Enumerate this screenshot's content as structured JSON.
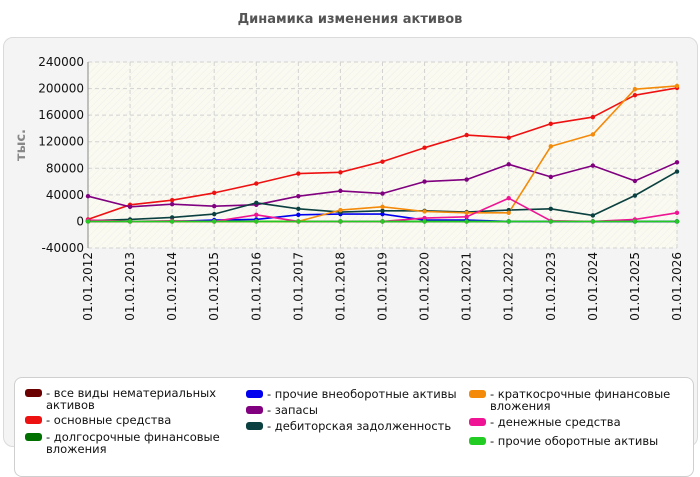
{
  "chart_data": {
    "type": "line",
    "title": "Динамика изменения активов",
    "ylabel": "тыс.",
    "xlabel": "",
    "ylim": [
      -40000,
      240000
    ],
    "yticks": [
      -40000,
      0,
      40000,
      80000,
      120000,
      160000,
      200000,
      240000
    ],
    "grid": true,
    "legend_position": "bottom",
    "categories": [
      "01.01.2012",
      "01.01.2013",
      "01.01.2014",
      "01.01.2015",
      "01.01.2016",
      "01.01.2017",
      "01.01.2018",
      "01.01.2019",
      "01.01.2020",
      "01.01.2021",
      "01.01.2022",
      "01.01.2023",
      "01.01.2024",
      "01.01.2025",
      "01.01.2026"
    ],
    "series": [
      {
        "name": "- все виды нематериальных активов",
        "color": "#6b0000",
        "values": [
          0,
          0,
          0,
          0,
          0,
          0,
          0,
          0,
          0,
          0,
          0,
          0,
          0,
          0,
          0
        ]
      },
      {
        "name": "- основные средства",
        "color": "#ee1111",
        "values": [
          3000,
          25000,
          32000,
          43000,
          57000,
          72000,
          74000,
          90000,
          111000,
          130000,
          126000,
          147000,
          157000,
          190000,
          201000
        ]
      },
      {
        "name": "- долгосрочные финансовые вложения",
        "color": "#007000",
        "values": [
          0,
          0,
          0,
          0,
          0,
          0,
          0,
          0,
          0,
          0,
          0,
          0,
          0,
          0,
          0
        ]
      },
      {
        "name": "- прочие внеоборотные активы",
        "color": "#0000ee",
        "values": [
          0,
          0,
          0,
          2000,
          3000,
          10000,
          11000,
          11000,
          2000,
          2000,
          0,
          0,
          0,
          0,
          0
        ]
      },
      {
        "name": "- запасы",
        "color": "#800080",
        "values": [
          38000,
          22000,
          26000,
          23000,
          25000,
          38000,
          46000,
          42000,
          60000,
          63000,
          86000,
          67000,
          84000,
          61000,
          89000
        ]
      },
      {
        "name": "- дебиторская задолженность",
        "color": "#0b4040",
        "values": [
          1000,
          3000,
          6000,
          11000,
          28000,
          19000,
          14000,
          16000,
          16000,
          14000,
          17000,
          19000,
          9000,
          39000,
          75000
        ]
      },
      {
        "name": "- краткосрочные финансовые вложения",
        "color": "#f48a0a",
        "values": [
          0,
          0,
          0,
          0,
          0,
          0,
          17000,
          22000,
          15000,
          13000,
          13000,
          113000,
          131000,
          199000,
          204000
        ]
      },
      {
        "name": "- денежные средства",
        "color": "#ee1493",
        "values": [
          2000,
          0,
          1000,
          0,
          10000,
          0,
          0,
          0,
          5000,
          7000,
          35000,
          1000,
          0,
          3000,
          13000
        ]
      },
      {
        "name": "- прочие оборотные активы",
        "color": "#22cc22",
        "values": [
          0,
          0,
          0,
          0,
          0,
          0,
          0,
          0,
          0,
          0,
          0,
          0,
          0,
          0,
          0
        ]
      }
    ]
  }
}
